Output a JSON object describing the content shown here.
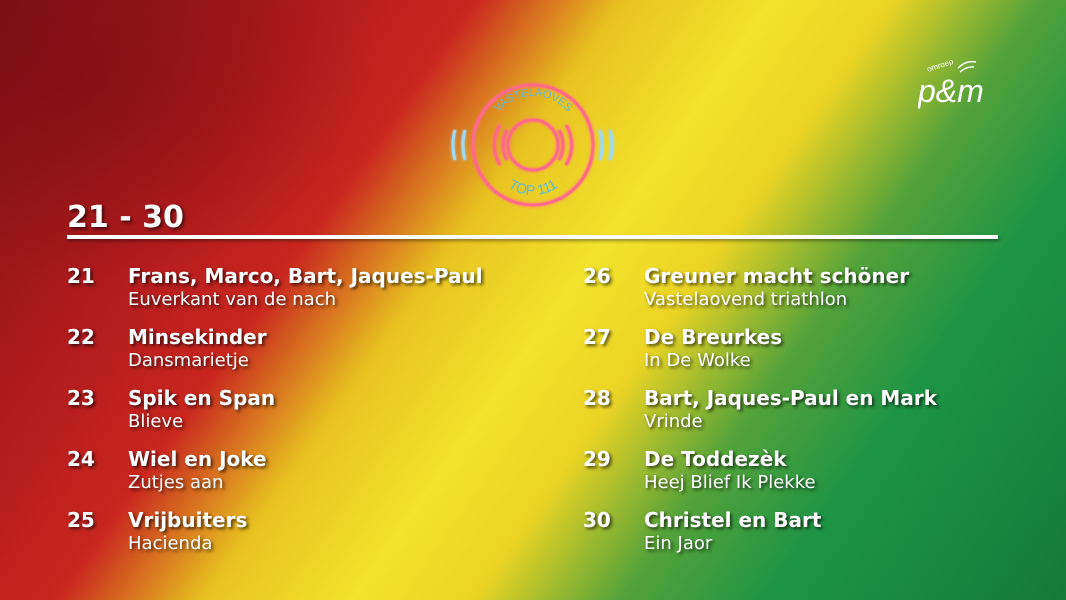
{
  "header": {
    "range_title": "21 - 30"
  },
  "badge": {
    "top_text": "VASTELAOVES",
    "bottom_text": "TOP 111"
  },
  "logo": {
    "small": "omroep",
    "main": "p&m"
  },
  "colors": {
    "red": "#b41c1e",
    "yellow": "#f2e32c",
    "green": "#1e9445"
  },
  "entries": [
    {
      "rank": "21",
      "artist": "Frans, Marco, Bart, Jaques-Paul",
      "song": "Euverkant van de nach"
    },
    {
      "rank": "22",
      "artist": "Minsekinder",
      "song": "Dansmarietje"
    },
    {
      "rank": "23",
      "artist": "Spik en Span",
      "song": "Blieve"
    },
    {
      "rank": "24",
      "artist": "Wiel en Joke",
      "song": "Zutjes aan"
    },
    {
      "rank": "25",
      "artist": "Vrijbuiters",
      "song": "Hacienda"
    },
    {
      "rank": "26",
      "artist": "Greuner macht schöner",
      "song": "Vastelaovend triathlon"
    },
    {
      "rank": "27",
      "artist": "De Breurkes",
      "song": "In De Wolke"
    },
    {
      "rank": "28",
      "artist": "Bart, Jaques-Paul en Mark",
      "song": "Vrinde"
    },
    {
      "rank": "29",
      "artist": "De Toddezèk",
      "song": "Heej Blief Ik Plekke"
    },
    {
      "rank": "30",
      "artist": "Christel en Bart",
      "song": "Ein Jaor"
    }
  ]
}
